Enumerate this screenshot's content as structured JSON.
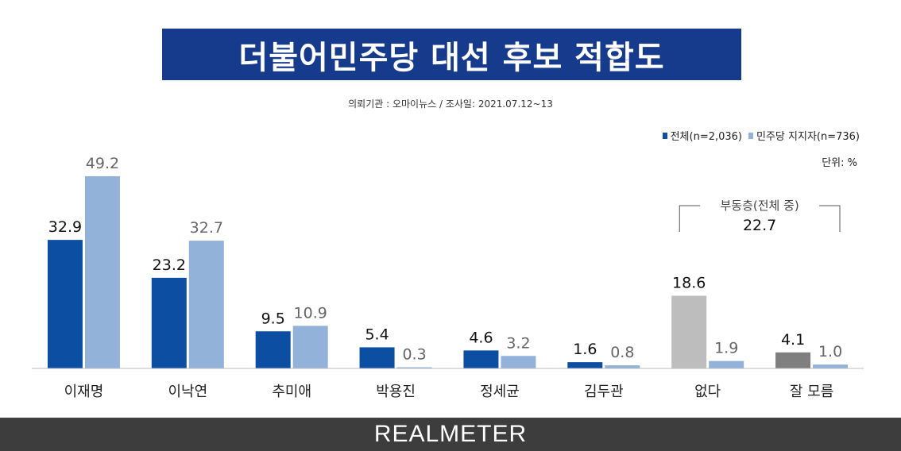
{
  "title": "더불어민주당 대선 후보 적합도",
  "subtitle": "의뢰기관 : 오마이뉴스   /   조사일: 2021.07.12~13",
  "unit": "단위: %",
  "brand": "REALMETER",
  "legend": [
    {
      "label": "전체(n=2,036)",
      "color": "#0b4ea2"
    },
    {
      "label": "민주당 지지자(n=736)",
      "color": "#93b2d9"
    }
  ],
  "annotation": {
    "label": "부동층(전체 중)",
    "value": "22.7"
  },
  "chart_data": {
    "type": "bar",
    "categories": [
      "이재명",
      "이낙연",
      "추미애",
      "박용진",
      "정세균",
      "김두관",
      "없다",
      "잘 모름"
    ],
    "series": [
      {
        "name": "전체(n=2,036)",
        "values": [
          32.9,
          23.2,
          9.5,
          5.4,
          4.6,
          1.6,
          18.6,
          4.1
        ],
        "labels": [
          "32.9",
          "23.2",
          "9.5",
          "5.4",
          "4.6",
          "1.6",
          "18.6",
          "4.1"
        ],
        "color": "#0b4ea2",
        "special_colors": {
          "6": "#bdbdbd",
          "7": "#7f7f7f"
        }
      },
      {
        "name": "민주당 지지자(n=736)",
        "values": [
          49.2,
          32.7,
          10.9,
          0.3,
          3.2,
          0.8,
          1.9,
          1.0
        ],
        "labels": [
          "49.2",
          "32.7",
          "10.9",
          "0.3",
          "3.2",
          "0.8",
          "1.9",
          "1.0"
        ],
        "color": "#93b2d9"
      }
    ],
    "ylim": [
      0,
      50
    ],
    "grid": false,
    "legend_position": "top-right"
  }
}
